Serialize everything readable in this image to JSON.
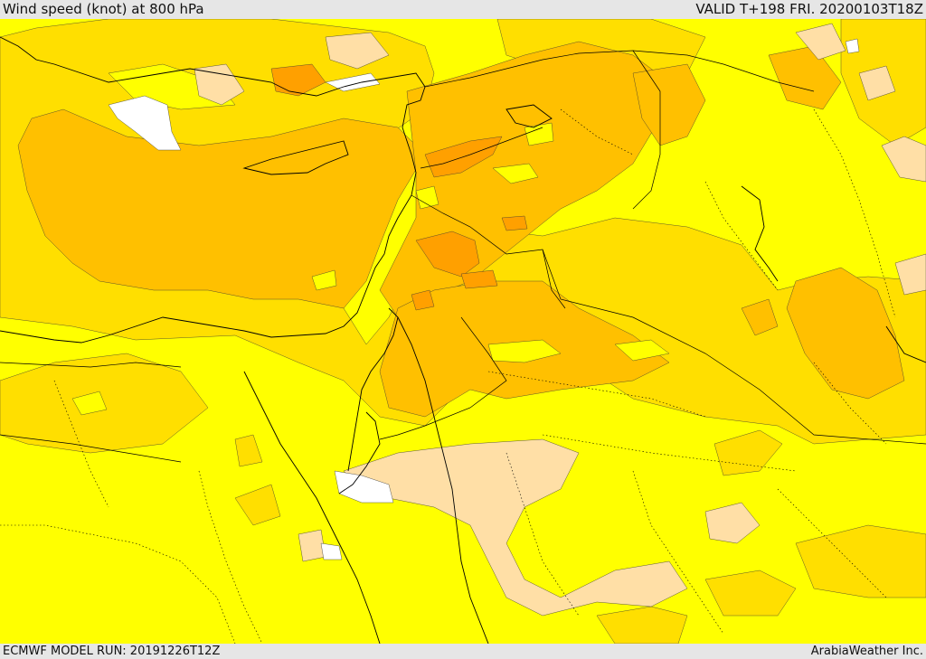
{
  "header": {
    "title": "Wind speed (knot) at 800 hPa",
    "valid": "VALID T+198 FRI. 20200103T18Z"
  },
  "footer": {
    "model_run": "ECMWF MODEL RUN: 20191226T12Z",
    "credit": "ArabiaWeather Inc."
  },
  "legend_colors": {
    "calm": "#ffffff",
    "light": "#ffdfa6",
    "yellow": "#ffff00",
    "gold": "#ffdf00",
    "amber": "#ffc000",
    "orange": "#ffa000"
  }
}
